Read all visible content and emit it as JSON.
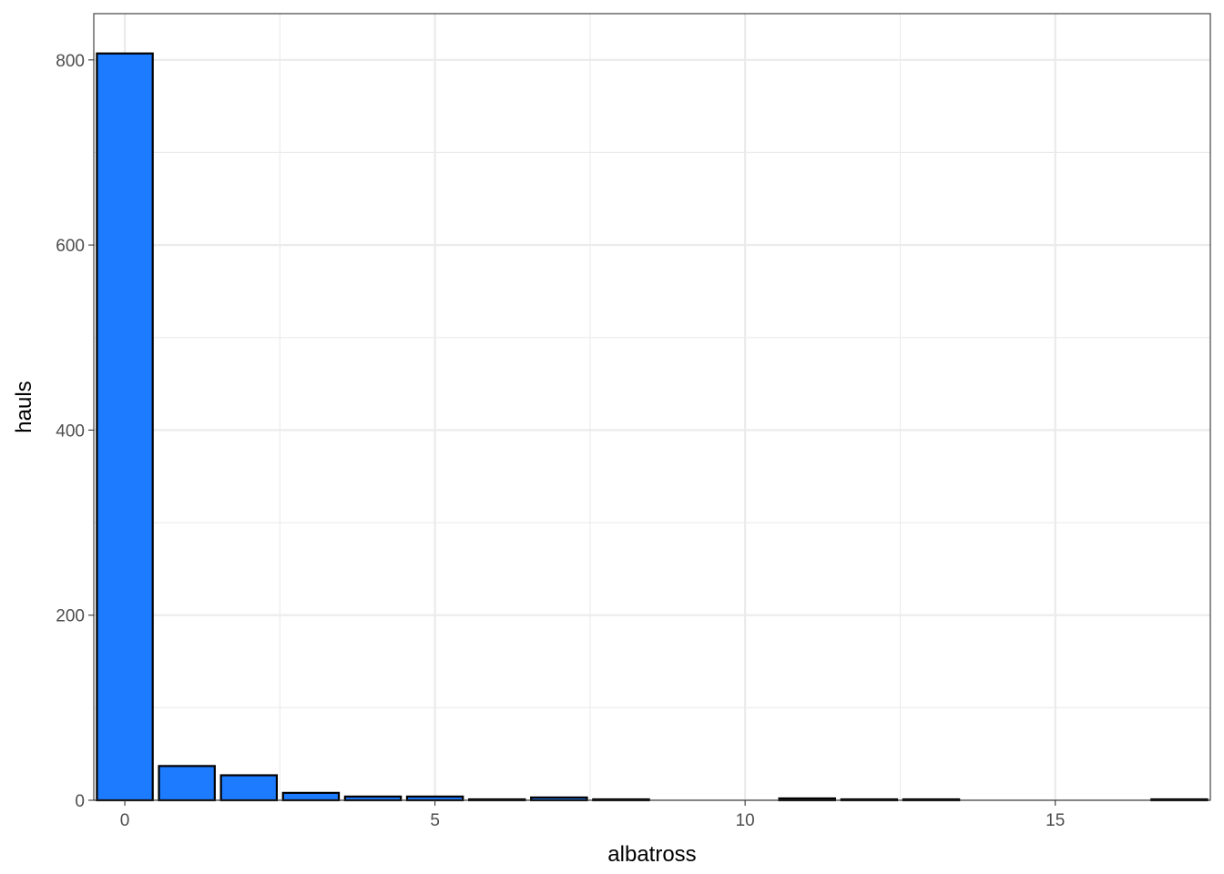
{
  "chart_data": {
    "type": "bar",
    "x": [
      0,
      1,
      2,
      3,
      4,
      5,
      6,
      7,
      8,
      9,
      10,
      11,
      12,
      13,
      14,
      15,
      16,
      17
    ],
    "values": [
      807,
      37,
      27,
      8,
      4,
      4,
      1,
      3,
      1,
      0,
      0,
      2,
      1,
      1,
      0,
      0,
      0,
      1
    ],
    "xlabel": "albatross",
    "ylabel": "hauls",
    "xlim": [
      -0.5,
      17.5
    ],
    "ylim": [
      0,
      850
    ],
    "x_ticks": [
      "0",
      "5",
      "10",
      "15"
    ],
    "y_ticks": [
      "0",
      "200",
      "400",
      "600",
      "800"
    ],
    "grid": true,
    "bar_fill": "#1C7BFF",
    "bar_outline": "#000000",
    "grid_color": "#EBEBEB",
    "panel_border": "#333333"
  }
}
